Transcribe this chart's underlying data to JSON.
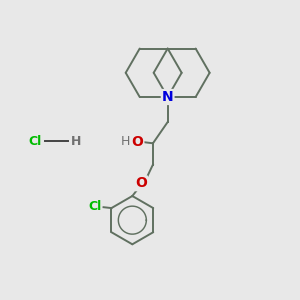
{
  "background_color": "#e8e8e8",
  "bond_color": "#607060",
  "N_color": "#0000dd",
  "O_color": "#cc0000",
  "Cl_color": "#00bb00",
  "H_color": "#707070",
  "fig_size": [
    3.0,
    3.0
  ],
  "dpi": 100,
  "xlim": [
    0,
    10
  ],
  "ylim": [
    0,
    10
  ]
}
